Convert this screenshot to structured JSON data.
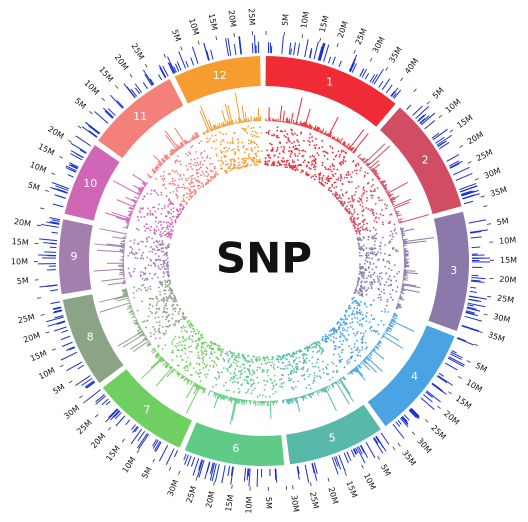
{
  "chart_data": {
    "type": "circos",
    "title": "SNP",
    "tick_step_mb": 5,
    "tick_label_suffix": "M",
    "chromosomes": [
      {
        "name": "1",
        "length_mb": 43,
        "color": "#ef2b36"
      },
      {
        "name": "2",
        "length_mb": 36,
        "color": "#d04d63"
      },
      {
        "name": "3",
        "length_mb": 37,
        "color": "#8b79ab"
      },
      {
        "name": "4",
        "length_mb": 35,
        "color": "#4aa3e3"
      },
      {
        "name": "5",
        "length_mb": 30,
        "color": "#58b9aa"
      },
      {
        "name": "6",
        "length_mb": 31,
        "color": "#5fcb86"
      },
      {
        "name": "7",
        "length_mb": 30,
        "color": "#70cf62"
      },
      {
        "name": "8",
        "length_mb": 28,
        "color": "#8ba486"
      },
      {
        "name": "9",
        "length_mb": 23,
        "color": "#a37fad"
      },
      {
        "name": "10",
        "length_mb": 23,
        "color": "#cf67b6"
      },
      {
        "name": "11",
        "length_mb": 29,
        "color": "#f3807b"
      },
      {
        "name": "12",
        "length_mb": 27,
        "color": "#f79c30"
      }
    ],
    "tracks": [
      "SNP density (histogram)",
      "SNP distribution (scatter)"
    ],
    "marker_color": "#1a2fd6"
  }
}
